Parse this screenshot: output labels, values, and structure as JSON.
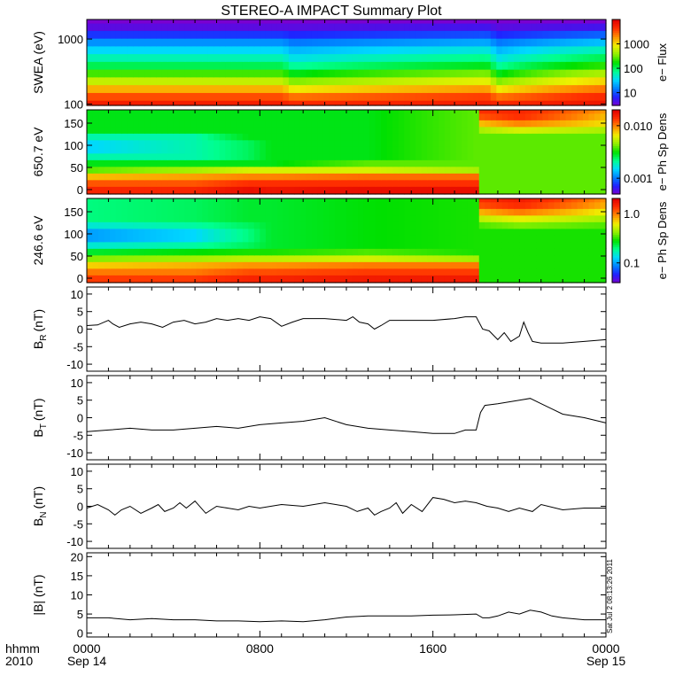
{
  "title": "STEREO-A IMPACT Summary Plot",
  "stamp": "Sat Jul  2 08:13:26 2011",
  "x_axis": {
    "row1_label": "hhmm",
    "row2_label": "2010",
    "ticks": [
      {
        "hour": 0,
        "time": "0000",
        "date": "Sep 14"
      },
      {
        "hour": 8,
        "time": "0800",
        "date": ""
      },
      {
        "hour": 16,
        "time": "1600",
        "date": ""
      },
      {
        "hour": 24,
        "time": "0000",
        "date": "Sep 15"
      }
    ],
    "range_hours": [
      0,
      24
    ]
  },
  "colormaps": {
    "rainbow": [
      "#7a00d0",
      "#2020ff",
      "#0080ff",
      "#00d8ff",
      "#00ff90",
      "#00e000",
      "#90f000",
      "#f0f000",
      "#ff9000",
      "#ff3000",
      "#e00000"
    ]
  },
  "chart_data": [
    {
      "id": "swea",
      "type": "heatmap",
      "ylabel": "SWEA (eV)",
      "y_scale": "log",
      "ylim": [
        95,
        2000
      ],
      "y_ticks": [
        100,
        1000
      ],
      "y_tick_labels": [
        "100",
        "1000"
      ],
      "colorbar": {
        "label": "e− Flux",
        "scale": "log",
        "range": [
          3,
          10000
        ],
        "ticks": [
          10,
          100,
          1000
        ],
        "tick_labels": [
          "10",
          "100",
          "1000"
        ]
      },
      "rows_energy_ev": [
        100,
        131,
        173,
        228,
        300,
        395,
        520,
        684,
        900,
        1185,
        1560,
        2000
      ],
      "time_knots_h": [
        0,
        4,
        9,
        9.5,
        18.5,
        19,
        24
      ],
      "flux_by_energy_at_knots": [
        [
          6000,
          6000,
          6000,
          5000,
          6000,
          5000,
          7000
        ],
        [
          3500,
          3500,
          3500,
          2500,
          4000,
          2500,
          5000
        ],
        [
          1500,
          1500,
          1500,
          900,
          1800,
          900,
          2500
        ],
        [
          600,
          600,
          600,
          350,
          800,
          350,
          1100
        ],
        [
          250,
          250,
          250,
          150,
          350,
          150,
          500
        ],
        [
          110,
          110,
          110,
          70,
          150,
          70,
          220
        ],
        [
          60,
          60,
          60,
          40,
          80,
          40,
          110
        ],
        [
          35,
          35,
          35,
          25,
          45,
          25,
          60
        ],
        [
          18,
          18,
          18,
          14,
          22,
          14,
          28
        ],
        [
          8,
          8,
          8,
          7,
          10,
          7,
          12
        ],
        [
          4,
          4,
          4,
          4,
          5,
          4,
          5
        ],
        [
          3,
          3,
          3,
          3,
          3,
          3,
          3
        ]
      ]
    },
    {
      "id": "pad650",
      "type": "heatmap",
      "ylabel": "650.7 eV",
      "ylim": [
        -10,
        180
      ],
      "y_ticks": [
        0,
        50,
        100,
        150
      ],
      "colorbar": {
        "label": "e− Ph Sp Dens",
        "scale": "log",
        "range": [
          0.0005,
          0.02
        ],
        "ticks": [
          0.001,
          0.01
        ],
        "tick_labels": [
          "0.001",
          "0.010"
        ]
      },
      "pitch_angle_rows": [
        0,
        15,
        30,
        45,
        60,
        75,
        90,
        105,
        120,
        135,
        150,
        165,
        180
      ],
      "time_knots_h": [
        0,
        5,
        7.5,
        8.5,
        13,
        18,
        18.2,
        20,
        24
      ],
      "dens_by_pitch_at_knots": [
        [
          0.015,
          0.015,
          0.018,
          0.017,
          0.018,
          0.018,
          0.004,
          0.004,
          0.004
        ],
        [
          0.012,
          0.012,
          0.014,
          0.014,
          0.014,
          0.014,
          0.004,
          0.004,
          0.004
        ],
        [
          0.008,
          0.009,
          0.01,
          0.01,
          0.011,
          0.011,
          0.004,
          0.004,
          0.004
        ],
        [
          0.004,
          0.005,
          0.006,
          0.006,
          0.006,
          0.005,
          0.004,
          0.004,
          0.004
        ],
        [
          0.003,
          0.003,
          0.003,
          0.003,
          0.004,
          0.004,
          0.004,
          0.004,
          0.004
        ],
        [
          0.002,
          0.002,
          0.0025,
          0.003,
          0.003,
          0.004,
          0.004,
          0.004,
          0.004
        ],
        [
          0.0015,
          0.002,
          0.0025,
          0.003,
          0.003,
          0.004,
          0.004,
          0.004,
          0.004
        ],
        [
          0.0015,
          0.002,
          0.0025,
          0.003,
          0.003,
          0.004,
          0.004,
          0.004,
          0.004
        ],
        [
          0.002,
          0.002,
          0.003,
          0.003,
          0.003,
          0.004,
          0.004,
          0.004,
          0.004
        ],
        [
          0.003,
          0.003,
          0.003,
          0.003,
          0.003,
          0.004,
          0.005,
          0.006,
          0.005
        ],
        [
          0.003,
          0.003,
          0.003,
          0.003,
          0.003,
          0.004,
          0.008,
          0.01,
          0.007
        ],
        [
          0.003,
          0.003,
          0.003,
          0.003,
          0.003,
          0.004,
          0.012,
          0.014,
          0.008
        ],
        [
          0.003,
          0.003,
          0.003,
          0.003,
          0.003,
          0.004,
          0.014,
          0.015,
          0.009
        ]
      ]
    },
    {
      "id": "pad246",
      "type": "heatmap",
      "ylabel": "246.6 eV",
      "ylim": [
        -10,
        180
      ],
      "y_ticks": [
        0,
        50,
        100,
        150
      ],
      "colorbar": {
        "label": "e− Ph Sp Dens",
        "scale": "log",
        "range": [
          0.04,
          2
        ],
        "ticks": [
          0.1,
          1.0
        ],
        "tick_labels": [
          "0.1",
          "1.0"
        ]
      },
      "pitch_angle_rows": [
        0,
        15,
        30,
        45,
        60,
        75,
        90,
        105,
        120,
        135,
        150,
        165,
        180
      ],
      "time_knots_h": [
        0,
        5,
        7.5,
        8.5,
        13,
        18,
        18.2,
        20,
        24
      ],
      "dens_by_pitch_at_knots": [
        [
          1.3,
          1.3,
          1.5,
          1.5,
          1.6,
          1.6,
          0.3,
          0.3,
          0.3
        ],
        [
          1.0,
          1.0,
          1.2,
          1.2,
          1.3,
          1.3,
          0.3,
          0.3,
          0.3
        ],
        [
          0.7,
          0.8,
          0.9,
          0.9,
          1.0,
          1.0,
          0.3,
          0.3,
          0.3
        ],
        [
          0.4,
          0.45,
          0.5,
          0.5,
          0.55,
          0.45,
          0.3,
          0.3,
          0.3
        ],
        [
          0.25,
          0.28,
          0.3,
          0.3,
          0.35,
          0.3,
          0.3,
          0.3,
          0.3
        ],
        [
          0.15,
          0.18,
          0.22,
          0.25,
          0.28,
          0.3,
          0.3,
          0.3,
          0.3
        ],
        [
          0.1,
          0.13,
          0.2,
          0.25,
          0.28,
          0.3,
          0.3,
          0.3,
          0.3
        ],
        [
          0.1,
          0.13,
          0.2,
          0.25,
          0.28,
          0.3,
          0.3,
          0.3,
          0.3
        ],
        [
          0.15,
          0.18,
          0.22,
          0.25,
          0.28,
          0.3,
          0.35,
          0.4,
          0.35
        ],
        [
          0.2,
          0.22,
          0.25,
          0.25,
          0.28,
          0.3,
          0.5,
          0.6,
          0.45
        ],
        [
          0.2,
          0.22,
          0.25,
          0.25,
          0.28,
          0.3,
          0.8,
          1.0,
          0.6
        ],
        [
          0.2,
          0.22,
          0.25,
          0.25,
          0.28,
          0.3,
          1.2,
          1.4,
          0.8
        ],
        [
          0.2,
          0.22,
          0.25,
          0.25,
          0.28,
          0.3,
          1.4,
          1.6,
          0.9
        ]
      ]
    },
    {
      "id": "br",
      "type": "line",
      "ylabel": "B_R (nT)",
      "ylabel_main": "B",
      "ylabel_sub": "R",
      "ylabel_unit": "(nT)",
      "ylim": [
        -12,
        12
      ],
      "y_ticks": [
        -10,
        -5,
        0,
        5,
        10
      ],
      "x": [
        0,
        0.5,
        1.0,
        1.2,
        1.5,
        2.0,
        2.5,
        3.0,
        3.5,
        4.0,
        4.5,
        5.0,
        5.5,
        6.0,
        6.5,
        7.0,
        7.5,
        8.0,
        8.5,
        9.0,
        9.5,
        10.0,
        11.0,
        12.0,
        12.3,
        12.6,
        13.0,
        13.3,
        13.6,
        14.0,
        15.0,
        16.0,
        17.0,
        17.5,
        18.0,
        18.3,
        18.6,
        19.0,
        19.3,
        19.6,
        20.0,
        20.2,
        20.4,
        20.6,
        21.0,
        22.0,
        23.0,
        24.0
      ],
      "y": [
        1,
        1.2,
        2.5,
        1.5,
        0.5,
        1.5,
        2.0,
        1.5,
        0.5,
        2.0,
        2.5,
        1.5,
        2.0,
        3.0,
        2.5,
        3.0,
        2.5,
        3.5,
        3.0,
        0.8,
        2.0,
        3.0,
        3.0,
        2.5,
        3.5,
        2.0,
        1.5,
        0.0,
        1.0,
        2.5,
        2.5,
        2.5,
        3.0,
        3.5,
        3.5,
        0.0,
        -0.5,
        -3.0,
        -1.0,
        -3.5,
        -2.0,
        2.0,
        -1.0,
        -3.5,
        -4.0,
        -4.0,
        -3.5,
        -3.0
      ]
    },
    {
      "id": "bt",
      "type": "line",
      "ylabel": "B_T (nT)",
      "ylabel_main": "B",
      "ylabel_sub": "T",
      "ylabel_unit": "(nT)",
      "ylim": [
        -12,
        12
      ],
      "y_ticks": [
        -10,
        -5,
        0,
        5,
        10
      ],
      "x": [
        0,
        1,
        2,
        3,
        4,
        5,
        6,
        7,
        8,
        9,
        10,
        11,
        12,
        12.5,
        13,
        14,
        15,
        16,
        17,
        17.5,
        18.0,
        18.2,
        18.4,
        19,
        20,
        20.5,
        21,
        21.5,
        22,
        23,
        24
      ],
      "y": [
        -4,
        -3.5,
        -3.0,
        -3.5,
        -3.5,
        -3.0,
        -2.5,
        -3.0,
        -2.0,
        -1.5,
        -1.0,
        0.0,
        -2.0,
        -2.5,
        -3.0,
        -3.5,
        -4.0,
        -4.5,
        -4.5,
        -3.5,
        -3.5,
        1.5,
        3.5,
        4.0,
        5.0,
        5.5,
        4.0,
        2.5,
        1.0,
        0.0,
        -1.5
      ]
    },
    {
      "id": "bn",
      "type": "line",
      "ylabel": "B_N (nT)",
      "ylabel_main": "B",
      "ylabel_sub": "N",
      "ylabel_unit": "(nT)",
      "ylim": [
        -12,
        12
      ],
      "y_ticks": [
        -10,
        -5,
        0,
        5,
        10
      ],
      "x": [
        0,
        0.5,
        1.0,
        1.3,
        1.6,
        2.0,
        2.5,
        3.0,
        3.3,
        3.6,
        4.0,
        4.3,
        4.6,
        5.0,
        5.5,
        6.0,
        6.5,
        7.0,
        7.5,
        8.0,
        9.0,
        10.0,
        11.0,
        12.0,
        12.5,
        13.0,
        13.3,
        13.6,
        14.0,
        14.3,
        14.6,
        15.0,
        15.5,
        16.0,
        16.5,
        17.0,
        17.5,
        18.0,
        18.5,
        19.0,
        19.5,
        20.0,
        20.3,
        20.6,
        21.0,
        22.0,
        23.0,
        24.0
      ],
      "y": [
        -0.5,
        0.5,
        -1.0,
        -2.5,
        -1.0,
        0.0,
        -2.0,
        -0.5,
        0.5,
        -1.5,
        -0.5,
        1.0,
        -0.5,
        1.5,
        -2.0,
        0.0,
        -0.5,
        -1.0,
        0.0,
        -0.5,
        0.5,
        0.0,
        1.0,
        0.0,
        -1.5,
        -0.5,
        -2.5,
        -1.5,
        -0.5,
        1.0,
        -2.0,
        0.5,
        -1.5,
        2.5,
        2.0,
        1.0,
        1.5,
        1.0,
        0.0,
        -0.5,
        -1.5,
        -0.5,
        -1.0,
        -1.5,
        0.5,
        -1.0,
        -0.5,
        -0.5
      ]
    },
    {
      "id": "bmag",
      "type": "line",
      "ylabel": "|B| (nT)",
      "ylim": [
        -1,
        21
      ],
      "y_ticks": [
        0,
        5,
        10,
        15,
        20
      ],
      "x": [
        0,
        1,
        2,
        3,
        4,
        5,
        6,
        7,
        8,
        9,
        10,
        11,
        12,
        13,
        14,
        15,
        16,
        17,
        18,
        18.3,
        18.6,
        19.0,
        19.5,
        20.0,
        20.5,
        21.0,
        21.5,
        22,
        23,
        24
      ],
      "y": [
        4.0,
        4.0,
        3.5,
        3.8,
        3.5,
        3.5,
        3.2,
        3.2,
        3.0,
        3.2,
        3.0,
        3.5,
        4.2,
        4.5,
        4.5,
        4.5,
        4.7,
        4.8,
        5.0,
        4.0,
        4.0,
        4.5,
        5.5,
        5.0,
        6.0,
        5.5,
        4.5,
        4.0,
        3.5,
        3.5
      ]
    }
  ]
}
